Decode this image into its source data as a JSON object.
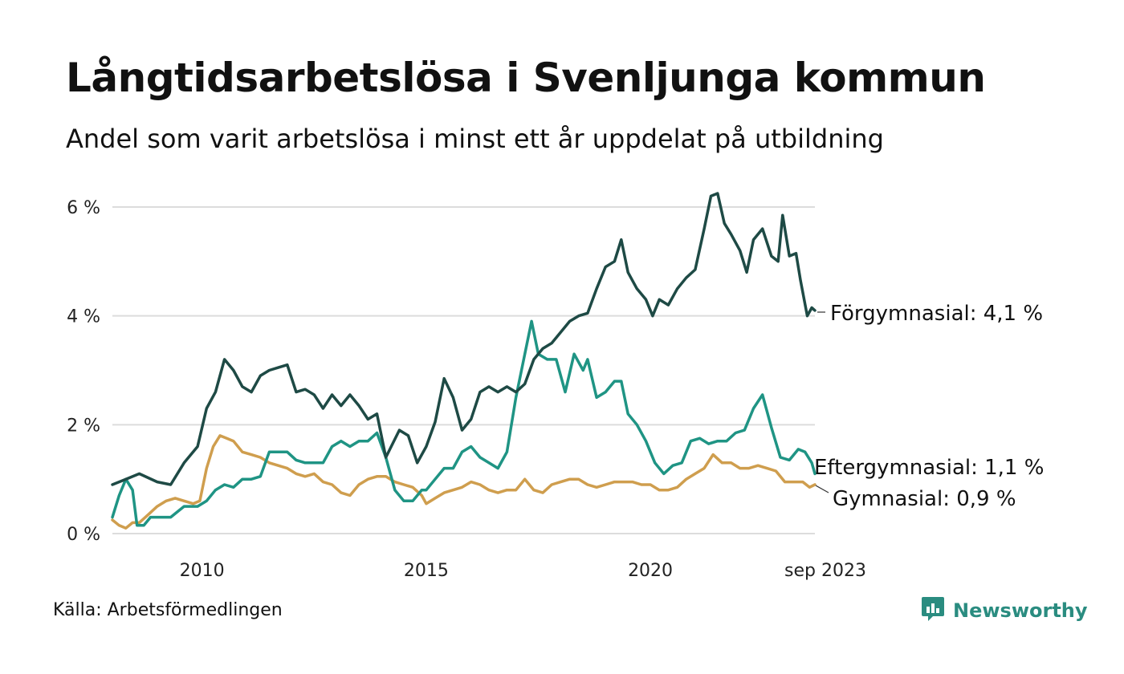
{
  "header": {
    "title": "Långtidsarbetslösa i Svenljunga kommun",
    "subtitle": "Andel som varit arbetslösa i minst ett år uppdelat på utbildning"
  },
  "footer": {
    "source": "Källa: Arbetsförmedlingen",
    "brand": "Newsworthy",
    "brand_icon": "bar-chart-speech-bubble-icon"
  },
  "chart_data": {
    "type": "line",
    "title": "Långtidsarbetslösa i Svenljunga kommun",
    "xlabel": "",
    "ylabel": "",
    "xlim": [
      2008.0,
      2023.67
    ],
    "ylim": [
      0,
      6
    ],
    "grid": true,
    "legend": "direct labels at line ends (right)",
    "y_ticks": [
      {
        "value": 0,
        "label": "0 %"
      },
      {
        "value": 2,
        "label": "2 %"
      },
      {
        "value": 4,
        "label": "4 %"
      },
      {
        "value": 6,
        "label": "6 %"
      }
    ],
    "x_ticks": [
      {
        "value": 2010,
        "label": "2010"
      },
      {
        "value": 2015,
        "label": "2015"
      },
      {
        "value": 2020,
        "label": "2020"
      },
      {
        "value": 2023.67,
        "label": "sep 2023"
      }
    ],
    "series": [
      {
        "name": "Förgymnasial",
        "end_label": "Förgymnasial: 4,1 %",
        "color": "#1e4a45",
        "points": [
          [
            2008.0,
            0.9
          ],
          [
            2008.3,
            1.0
          ],
          [
            2008.6,
            1.1
          ],
          [
            2009.0,
            0.95
          ],
          [
            2009.3,
            0.9
          ],
          [
            2009.6,
            1.3
          ],
          [
            2009.9,
            1.6
          ],
          [
            2010.1,
            2.3
          ],
          [
            2010.3,
            2.6
          ],
          [
            2010.5,
            3.2
          ],
          [
            2010.7,
            3.0
          ],
          [
            2010.9,
            2.7
          ],
          [
            2011.1,
            2.6
          ],
          [
            2011.3,
            2.9
          ],
          [
            2011.5,
            3.0
          ],
          [
            2011.7,
            3.05
          ],
          [
            2011.9,
            3.1
          ],
          [
            2012.1,
            2.6
          ],
          [
            2012.3,
            2.65
          ],
          [
            2012.5,
            2.55
          ],
          [
            2012.7,
            2.3
          ],
          [
            2012.9,
            2.55
          ],
          [
            2013.1,
            2.35
          ],
          [
            2013.3,
            2.55
          ],
          [
            2013.5,
            2.35
          ],
          [
            2013.7,
            2.1
          ],
          [
            2013.9,
            2.2
          ],
          [
            2014.1,
            1.4
          ],
          [
            2014.4,
            1.9
          ],
          [
            2014.6,
            1.8
          ],
          [
            2014.8,
            1.3
          ],
          [
            2015.0,
            1.6
          ],
          [
            2015.2,
            2.05
          ],
          [
            2015.4,
            2.85
          ],
          [
            2015.6,
            2.5
          ],
          [
            2015.8,
            1.9
          ],
          [
            2016.0,
            2.1
          ],
          [
            2016.2,
            2.6
          ],
          [
            2016.4,
            2.7
          ],
          [
            2016.6,
            2.6
          ],
          [
            2016.8,
            2.7
          ],
          [
            2017.0,
            2.6
          ],
          [
            2017.2,
            2.75
          ],
          [
            2017.4,
            3.2
          ],
          [
            2017.6,
            3.4
          ],
          [
            2017.8,
            3.5
          ],
          [
            2018.0,
            3.7
          ],
          [
            2018.2,
            3.9
          ],
          [
            2018.4,
            4.0
          ],
          [
            2018.6,
            4.05
          ],
          [
            2018.8,
            4.5
          ],
          [
            2019.0,
            4.9
          ],
          [
            2019.2,
            5.0
          ],
          [
            2019.35,
            5.4
          ],
          [
            2019.5,
            4.8
          ],
          [
            2019.7,
            4.5
          ],
          [
            2019.9,
            4.3
          ],
          [
            2020.05,
            4.0
          ],
          [
            2020.2,
            4.3
          ],
          [
            2020.4,
            4.2
          ],
          [
            2020.6,
            4.5
          ],
          [
            2020.8,
            4.7
          ],
          [
            2021.0,
            4.85
          ],
          [
            2021.2,
            5.6
          ],
          [
            2021.35,
            6.2
          ],
          [
            2021.5,
            6.25
          ],
          [
            2021.65,
            5.7
          ],
          [
            2021.8,
            5.5
          ],
          [
            2022.0,
            5.2
          ],
          [
            2022.15,
            4.8
          ],
          [
            2022.3,
            5.4
          ],
          [
            2022.5,
            5.6
          ],
          [
            2022.7,
            5.1
          ],
          [
            2022.85,
            5.0
          ],
          [
            2022.95,
            5.85
          ],
          [
            2023.1,
            5.1
          ],
          [
            2023.25,
            5.15
          ],
          [
            2023.35,
            4.65
          ],
          [
            2023.5,
            4.0
          ],
          [
            2023.6,
            4.15
          ],
          [
            2023.67,
            4.1
          ]
        ]
      },
      {
        "name": "Eftergymnasial",
        "end_label": "Eftergymnasial: 1,1 %",
        "color": "#1f9484",
        "points": [
          [
            2008.0,
            0.3
          ],
          [
            2008.15,
            0.7
          ],
          [
            2008.3,
            1.0
          ],
          [
            2008.45,
            0.8
          ],
          [
            2008.55,
            0.15
          ],
          [
            2008.7,
            0.15
          ],
          [
            2008.85,
            0.3
          ],
          [
            2009.0,
            0.3
          ],
          [
            2009.3,
            0.3
          ],
          [
            2009.6,
            0.5
          ],
          [
            2009.9,
            0.5
          ],
          [
            2010.1,
            0.6
          ],
          [
            2010.3,
            0.8
          ],
          [
            2010.5,
            0.9
          ],
          [
            2010.7,
            0.85
          ],
          [
            2010.9,
            1.0
          ],
          [
            2011.1,
            1.0
          ],
          [
            2011.3,
            1.05
          ],
          [
            2011.5,
            1.5
          ],
          [
            2011.7,
            1.5
          ],
          [
            2011.9,
            1.5
          ],
          [
            2012.1,
            1.35
          ],
          [
            2012.3,
            1.3
          ],
          [
            2012.5,
            1.3
          ],
          [
            2012.7,
            1.3
          ],
          [
            2012.9,
            1.6
          ],
          [
            2013.1,
            1.7
          ],
          [
            2013.3,
            1.6
          ],
          [
            2013.5,
            1.7
          ],
          [
            2013.7,
            1.7
          ],
          [
            2013.9,
            1.85
          ],
          [
            2014.1,
            1.4
          ],
          [
            2014.3,
            0.8
          ],
          [
            2014.5,
            0.6
          ],
          [
            2014.7,
            0.6
          ],
          [
            2014.9,
            0.8
          ],
          [
            2015.0,
            0.8
          ],
          [
            2015.2,
            1.0
          ],
          [
            2015.4,
            1.2
          ],
          [
            2015.6,
            1.2
          ],
          [
            2015.8,
            1.5
          ],
          [
            2016.0,
            1.6
          ],
          [
            2016.2,
            1.4
          ],
          [
            2016.4,
            1.3
          ],
          [
            2016.6,
            1.2
          ],
          [
            2016.8,
            1.5
          ],
          [
            2017.0,
            2.5
          ],
          [
            2017.2,
            3.3
          ],
          [
            2017.35,
            3.9
          ],
          [
            2017.5,
            3.3
          ],
          [
            2017.7,
            3.2
          ],
          [
            2017.9,
            3.2
          ],
          [
            2018.1,
            2.6
          ],
          [
            2018.3,
            3.3
          ],
          [
            2018.5,
            3.0
          ],
          [
            2018.6,
            3.2
          ],
          [
            2018.8,
            2.5
          ],
          [
            2019.0,
            2.6
          ],
          [
            2019.2,
            2.8
          ],
          [
            2019.35,
            2.8
          ],
          [
            2019.5,
            2.2
          ],
          [
            2019.7,
            2.0
          ],
          [
            2019.9,
            1.7
          ],
          [
            2020.1,
            1.3
          ],
          [
            2020.3,
            1.1
          ],
          [
            2020.5,
            1.25
          ],
          [
            2020.7,
            1.3
          ],
          [
            2020.9,
            1.7
          ],
          [
            2021.1,
            1.75
          ],
          [
            2021.3,
            1.65
          ],
          [
            2021.5,
            1.7
          ],
          [
            2021.7,
            1.7
          ],
          [
            2021.9,
            1.85
          ],
          [
            2022.1,
            1.9
          ],
          [
            2022.3,
            2.3
          ],
          [
            2022.5,
            2.55
          ],
          [
            2022.7,
            1.95
          ],
          [
            2022.9,
            1.4
          ],
          [
            2023.1,
            1.35
          ],
          [
            2023.3,
            1.55
          ],
          [
            2023.45,
            1.5
          ],
          [
            2023.6,
            1.3
          ],
          [
            2023.67,
            1.1
          ]
        ]
      },
      {
        "name": "Gymnasial",
        "end_label": "Gymnasial: 0,9 %",
        "color": "#cf9e4e",
        "points": [
          [
            2008.0,
            0.25
          ],
          [
            2008.15,
            0.15
          ],
          [
            2008.3,
            0.1
          ],
          [
            2008.45,
            0.2
          ],
          [
            2008.6,
            0.2
          ],
          [
            2008.8,
            0.35
          ],
          [
            2009.0,
            0.5
          ],
          [
            2009.2,
            0.6
          ],
          [
            2009.4,
            0.65
          ],
          [
            2009.6,
            0.6
          ],
          [
            2009.8,
            0.55
          ],
          [
            2009.95,
            0.6
          ],
          [
            2010.1,
            1.2
          ],
          [
            2010.25,
            1.6
          ],
          [
            2010.4,
            1.8
          ],
          [
            2010.55,
            1.75
          ],
          [
            2010.7,
            1.7
          ],
          [
            2010.9,
            1.5
          ],
          [
            2011.1,
            1.45
          ],
          [
            2011.3,
            1.4
          ],
          [
            2011.5,
            1.3
          ],
          [
            2011.7,
            1.25
          ],
          [
            2011.9,
            1.2
          ],
          [
            2012.1,
            1.1
          ],
          [
            2012.3,
            1.05
          ],
          [
            2012.5,
            1.1
          ],
          [
            2012.7,
            0.95
          ],
          [
            2012.9,
            0.9
          ],
          [
            2013.1,
            0.75
          ],
          [
            2013.3,
            0.7
          ],
          [
            2013.5,
            0.9
          ],
          [
            2013.7,
            1.0
          ],
          [
            2013.9,
            1.05
          ],
          [
            2014.1,
            1.05
          ],
          [
            2014.3,
            0.95
          ],
          [
            2014.5,
            0.9
          ],
          [
            2014.7,
            0.85
          ],
          [
            2014.9,
            0.7
          ],
          [
            2015.0,
            0.55
          ],
          [
            2015.2,
            0.65
          ],
          [
            2015.4,
            0.75
          ],
          [
            2015.6,
            0.8
          ],
          [
            2015.8,
            0.85
          ],
          [
            2016.0,
            0.95
          ],
          [
            2016.2,
            0.9
          ],
          [
            2016.4,
            0.8
          ],
          [
            2016.6,
            0.75
          ],
          [
            2016.8,
            0.8
          ],
          [
            2017.0,
            0.8
          ],
          [
            2017.2,
            1.0
          ],
          [
            2017.4,
            0.8
          ],
          [
            2017.6,
            0.75
          ],
          [
            2017.8,
            0.9
          ],
          [
            2018.0,
            0.95
          ],
          [
            2018.2,
            1.0
          ],
          [
            2018.4,
            1.0
          ],
          [
            2018.6,
            0.9
          ],
          [
            2018.8,
            0.85
          ],
          [
            2019.0,
            0.9
          ],
          [
            2019.2,
            0.95
          ],
          [
            2019.4,
            0.95
          ],
          [
            2019.6,
            0.95
          ],
          [
            2019.8,
            0.9
          ],
          [
            2020.0,
            0.9
          ],
          [
            2020.2,
            0.8
          ],
          [
            2020.4,
            0.8
          ],
          [
            2020.6,
            0.85
          ],
          [
            2020.8,
            1.0
          ],
          [
            2021.0,
            1.1
          ],
          [
            2021.2,
            1.2
          ],
          [
            2021.4,
            1.45
          ],
          [
            2021.6,
            1.3
          ],
          [
            2021.8,
            1.3
          ],
          [
            2022.0,
            1.2
          ],
          [
            2022.2,
            1.2
          ],
          [
            2022.4,
            1.25
          ],
          [
            2022.6,
            1.2
          ],
          [
            2022.8,
            1.15
          ],
          [
            2023.0,
            0.95
          ],
          [
            2023.2,
            0.95
          ],
          [
            2023.4,
            0.95
          ],
          [
            2023.55,
            0.85
          ],
          [
            2023.67,
            0.9
          ]
        ]
      }
    ]
  }
}
